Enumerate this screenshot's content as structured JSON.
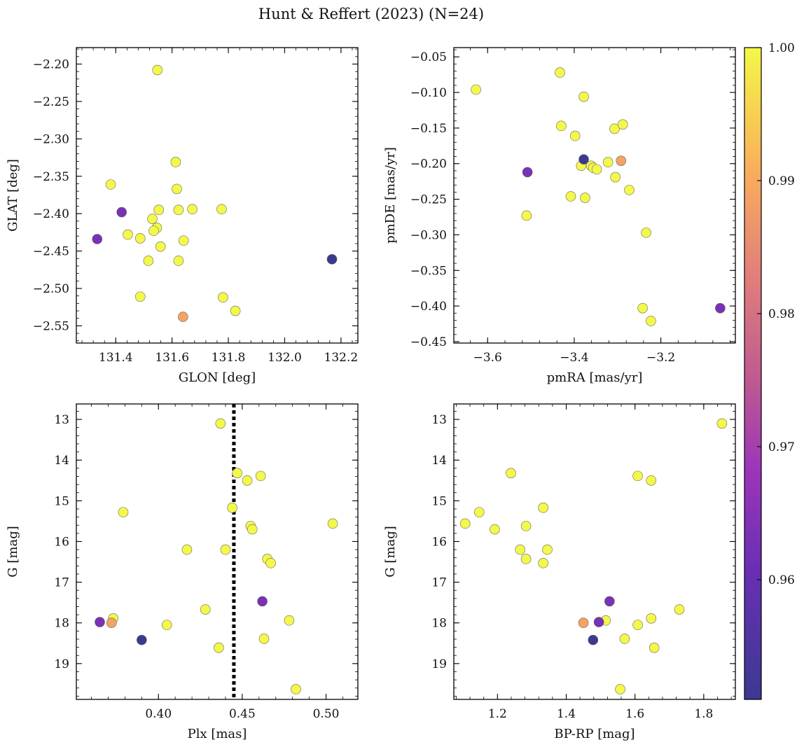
{
  "title": "Hunt & Reffert (2023) (N=24)",
  "colorbar": {
    "min": 0.951,
    "max": 1.0,
    "ticks": [
      0.96,
      0.97,
      0.98,
      0.99,
      1.0
    ],
    "tick_labels": [
      "0.96",
      "0.97",
      "0.98",
      "0.99",
      "1.00"
    ],
    "colormap": "plasma"
  },
  "chart_data": [
    {
      "type": "scatter",
      "id": "pos",
      "xlabel": "GLON [deg]",
      "ylabel": "GLAT [deg]",
      "xlim": [
        131.26,
        132.26
      ],
      "ylim": [
        -2.573,
        -2.178
      ],
      "xticks": [
        131.4,
        131.6,
        131.8,
        132.0,
        132.2
      ],
      "xtick_labels": [
        "131.4",
        "131.6",
        "131.8",
        "132.0",
        "132.2"
      ],
      "yticks": [
        -2.55,
        -2.5,
        -2.45,
        -2.4,
        -2.35,
        -2.3,
        -2.25,
        -2.2
      ],
      "ytick_labels": [
        "−2.55",
        "−2.50",
        "−2.45",
        "−2.40",
        "−2.35",
        "−2.30",
        "−2.25",
        "−2.20"
      ],
      "x": [
        131.548,
        131.613,
        131.382,
        131.617,
        131.421,
        131.553,
        131.623,
        131.672,
        131.776,
        131.53,
        131.546,
        131.443,
        131.334,
        131.535,
        131.487,
        131.641,
        131.559,
        131.516,
        131.623,
        132.168,
        131.487,
        131.781,
        131.825,
        131.639
      ],
      "y": [
        -2.208,
        -2.331,
        -2.361,
        -2.367,
        -2.398,
        -2.395,
        -2.395,
        -2.394,
        -2.394,
        -2.407,
        -2.419,
        -2.428,
        -2.434,
        -2.423,
        -2.433,
        -2.436,
        -2.444,
        -2.463,
        -2.463,
        -2.461,
        -2.511,
        -2.512,
        -2.53,
        -2.538
      ],
      "c": [
        1.0,
        1.0,
        1.0,
        1.0,
        0.963,
        1.0,
        1.0,
        1.0,
        1.0,
        1.0,
        1.0,
        1.0,
        0.963,
        1.0,
        1.0,
        1.0,
        1.0,
        1.0,
        1.0,
        0.951,
        1.0,
        1.0,
        1.0,
        0.989
      ]
    },
    {
      "type": "scatter",
      "id": "pm",
      "xlabel": "pmRA [mas/yr]",
      "ylabel": "pmDE [mas/yr]",
      "xlim": [
        -3.678,
        -3.028
      ],
      "ylim": [
        -0.452,
        -0.037
      ],
      "xticks": [
        -3.6,
        -3.4,
        -3.2
      ],
      "xtick_labels": [
        "−3.6",
        "−3.4",
        "−3.2"
      ],
      "yticks": [
        -0.45,
        -0.4,
        -0.35,
        -0.3,
        -0.25,
        -0.2,
        -0.15,
        -0.1,
        -0.05
      ],
      "ytick_labels": [
        "−0.45",
        "−0.40",
        "−0.35",
        "−0.30",
        "−0.25",
        "−0.20",
        "−0.15",
        "−0.10",
        "−0.05"
      ],
      "x": [
        -3.627,
        -3.433,
        -3.378,
        -3.43,
        -3.398,
        -3.307,
        -3.288,
        -3.378,
        -3.384,
        -3.361,
        -3.356,
        -3.348,
        -3.322,
        -3.292,
        -3.305,
        -3.273,
        -3.508,
        -3.408,
        -3.375,
        -3.51,
        -3.234,
        -3.242,
        -3.223,
        -3.063
      ],
      "y": [
        -0.096,
        -0.072,
        -0.106,
        -0.147,
        -0.161,
        -0.151,
        -0.145,
        -0.194,
        -0.203,
        -0.203,
        -0.206,
        -0.208,
        -0.198,
        -0.196,
        -0.219,
        -0.237,
        -0.212,
        -0.246,
        -0.248,
        -0.273,
        -0.297,
        -0.403,
        -0.421,
        -0.403
      ],
      "c": [
        1.0,
        1.0,
        1.0,
        1.0,
        1.0,
        1.0,
        1.0,
        0.951,
        1.0,
        1.0,
        1.0,
        1.0,
        1.0,
        0.989,
        1.0,
        1.0,
        0.963,
        1.0,
        1.0,
        1.0,
        1.0,
        1.0,
        1.0,
        0.963
      ]
    },
    {
      "type": "scatter",
      "id": "plx",
      "xlabel": "Plx [mas]",
      "ylabel": "G [mag]",
      "xlim": [
        0.351,
        0.519
      ],
      "ylim": [
        19.88,
        12.62
      ],
      "vline": 0.445,
      "xticks": [
        0.4,
        0.45,
        0.5
      ],
      "xtick_labels": [
        "0.40",
        "0.45",
        "0.50"
      ],
      "yticks": [
        13,
        14,
        15,
        16,
        17,
        18,
        19
      ],
      "ytick_labels": [
        "13",
        "14",
        "15",
        "16",
        "17",
        "18",
        "19"
      ],
      "x": [
        0.437,
        0.447,
        0.461,
        0.453,
        0.379,
        0.444,
        0.504,
        0.455,
        0.456,
        0.417,
        0.44,
        0.465,
        0.467,
        0.462,
        0.428,
        0.365,
        0.373,
        0.372,
        0.405,
        0.478,
        0.39,
        0.463,
        0.436,
        0.482
      ],
      "y": [
        13.1,
        14.32,
        14.39,
        14.5,
        15.28,
        15.17,
        15.56,
        15.62,
        15.7,
        16.2,
        16.2,
        16.43,
        16.53,
        17.47,
        17.67,
        17.98,
        17.89,
        18.0,
        18.05,
        17.94,
        18.42,
        18.39,
        18.61,
        19.63
      ],
      "c": [
        1.0,
        1.0,
        1.0,
        1.0,
        1.0,
        1.0,
        1.0,
        1.0,
        1.0,
        1.0,
        1.0,
        1.0,
        1.0,
        0.963,
        1.0,
        0.963,
        1.0,
        0.989,
        1.0,
        1.0,
        0.951,
        1.0,
        1.0,
        1.0
      ]
    },
    {
      "type": "scatter",
      "id": "cmd",
      "xlabel": "BP-RP [mag]",
      "ylabel": "G [mag]",
      "xlim": [
        1.073,
        1.892
      ],
      "ylim": [
        19.88,
        12.62
      ],
      "xticks": [
        1.2,
        1.4,
        1.6,
        1.8
      ],
      "xtick_labels": [
        "1.2",
        "1.4",
        "1.6",
        "1.8"
      ],
      "yticks": [
        13,
        14,
        15,
        16,
        17,
        18,
        19
      ],
      "ytick_labels": [
        "13",
        "14",
        "15",
        "16",
        "17",
        "18",
        "19"
      ],
      "x": [
        1.853,
        1.239,
        1.608,
        1.647,
        1.147,
        1.333,
        1.106,
        1.283,
        1.192,
        1.266,
        1.345,
        1.283,
        1.333,
        1.526,
        1.729,
        1.495,
        1.647,
        1.45,
        1.608,
        1.515,
        1.478,
        1.57,
        1.656,
        1.557
      ],
      "y": [
        13.1,
        14.32,
        14.39,
        14.5,
        15.28,
        15.17,
        15.56,
        15.62,
        15.7,
        16.2,
        16.2,
        16.43,
        16.53,
        17.47,
        17.67,
        17.98,
        17.89,
        18.0,
        18.05,
        17.94,
        18.42,
        18.39,
        18.61,
        19.63
      ],
      "c": [
        1.0,
        1.0,
        1.0,
        1.0,
        1.0,
        1.0,
        1.0,
        1.0,
        1.0,
        1.0,
        1.0,
        1.0,
        1.0,
        0.963,
        1.0,
        0.963,
        1.0,
        0.989,
        1.0,
        1.0,
        0.951,
        1.0,
        1.0,
        1.0
      ]
    }
  ]
}
